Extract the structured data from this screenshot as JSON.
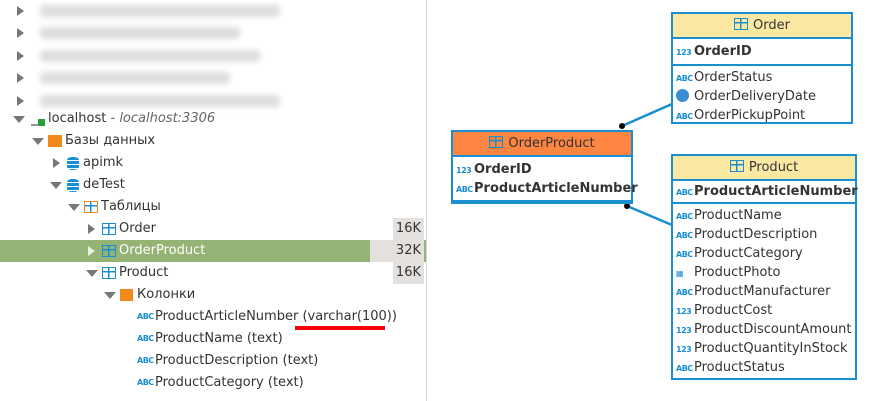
{
  "tree": {
    "connection": {
      "name": "localhost",
      "host": "- localhost:3306"
    },
    "databases_label": "Базы данных",
    "databases": [
      {
        "name": "apimk"
      },
      {
        "name": "deTest"
      }
    ],
    "tables_label": "Таблицы",
    "tables": [
      {
        "name": "Order",
        "size": "16K"
      },
      {
        "name": "OrderProduct",
        "size": "32K"
      },
      {
        "name": "Product",
        "size": "16K"
      }
    ],
    "columns_label": "Колонки",
    "columns": [
      {
        "name": "ProductArticleNumber",
        "type": "(varchar(100))"
      },
      {
        "name": "ProductName",
        "type": "(text)"
      },
      {
        "name": "ProductDescription",
        "type": "(text)"
      },
      {
        "name": "ProductCategory",
        "type": "(text)"
      }
    ]
  },
  "diagram": {
    "order": {
      "title": "Order",
      "pk": "OrderID",
      "columns": [
        {
          "icon": "abc",
          "name": "OrderStatus"
        },
        {
          "icon": "clock",
          "name": "OrderDeliveryDate"
        },
        {
          "icon": "abc",
          "name": "OrderPickupPoint"
        }
      ]
    },
    "orderproduct": {
      "title": "OrderProduct",
      "keys": [
        "OrderID",
        "ProductArticleNumber"
      ]
    },
    "product": {
      "title": "Product",
      "pk": "ProductArticleNumber",
      "columns": [
        {
          "icon": "abc",
          "name": "ProductName"
        },
        {
          "icon": "abc",
          "name": "ProductDescription"
        },
        {
          "icon": "abc",
          "name": "ProductCategory"
        },
        {
          "icon": "image",
          "name": "ProductPhoto"
        },
        {
          "icon": "abc",
          "name": "ProductManufacturer"
        },
        {
          "icon": "123",
          "name": "ProductCost"
        },
        {
          "icon": "123",
          "name": "ProductDiscountAmount"
        },
        {
          "icon": "123",
          "name": "ProductQuantityInStock"
        },
        {
          "icon": "abc",
          "name": "ProductStatus"
        }
      ]
    }
  },
  "colors": {
    "selection": "#95b374",
    "entity_border": "#1a8fd0",
    "entity_header": "#fbe9a3",
    "selected_entity_header": "#fd8542",
    "highlight": "#ff0000"
  }
}
